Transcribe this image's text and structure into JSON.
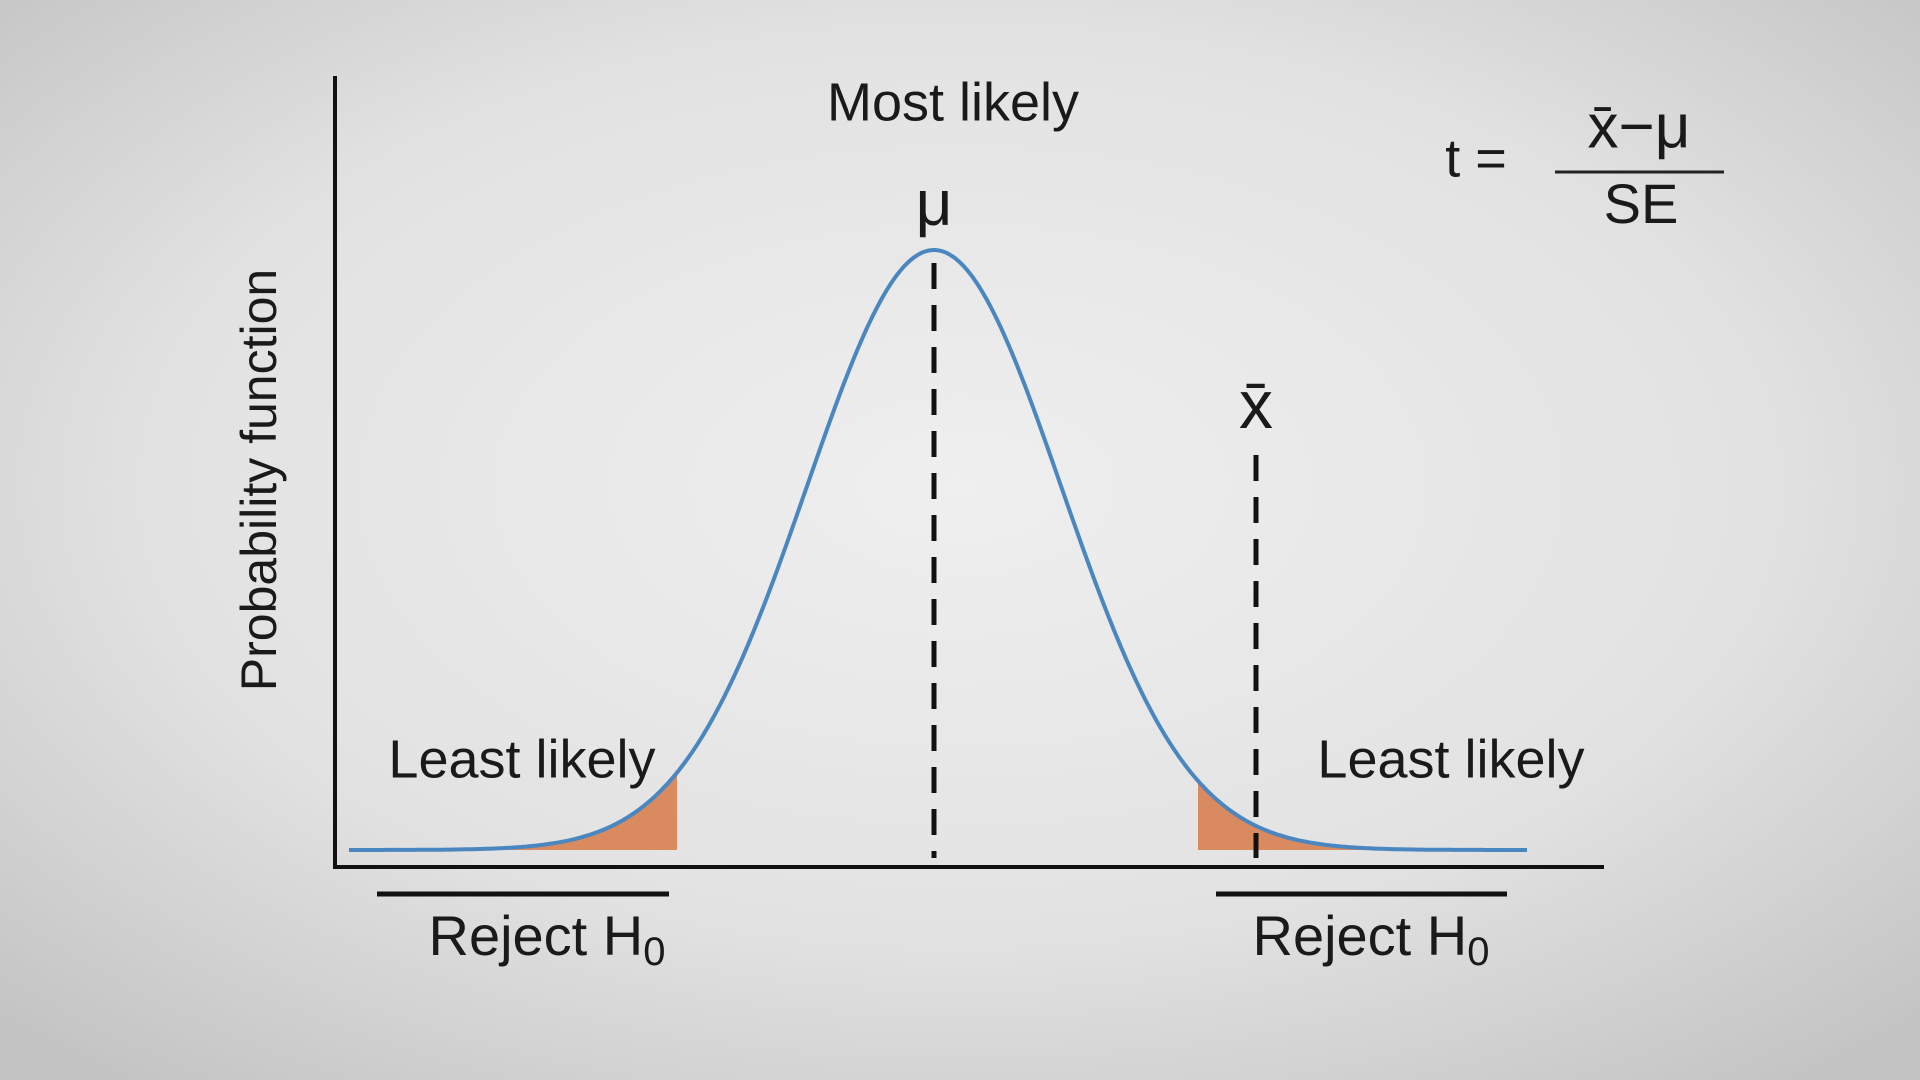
{
  "y_axis_label": "Probability function",
  "top_label": "Most likely",
  "mean_symbol": "μ",
  "sample_mean_symbol": "x̄",
  "tail_labels": [
    "Least likely",
    "Least likely"
  ],
  "reject_labels": [
    {
      "text": "Reject H",
      "subscript": "0"
    },
    {
      "text": "Reject H",
      "subscript": "0"
    }
  ],
  "formula": {
    "lhs": "t =",
    "numerator": "x̄−μ",
    "denominator": "SE"
  }
}
